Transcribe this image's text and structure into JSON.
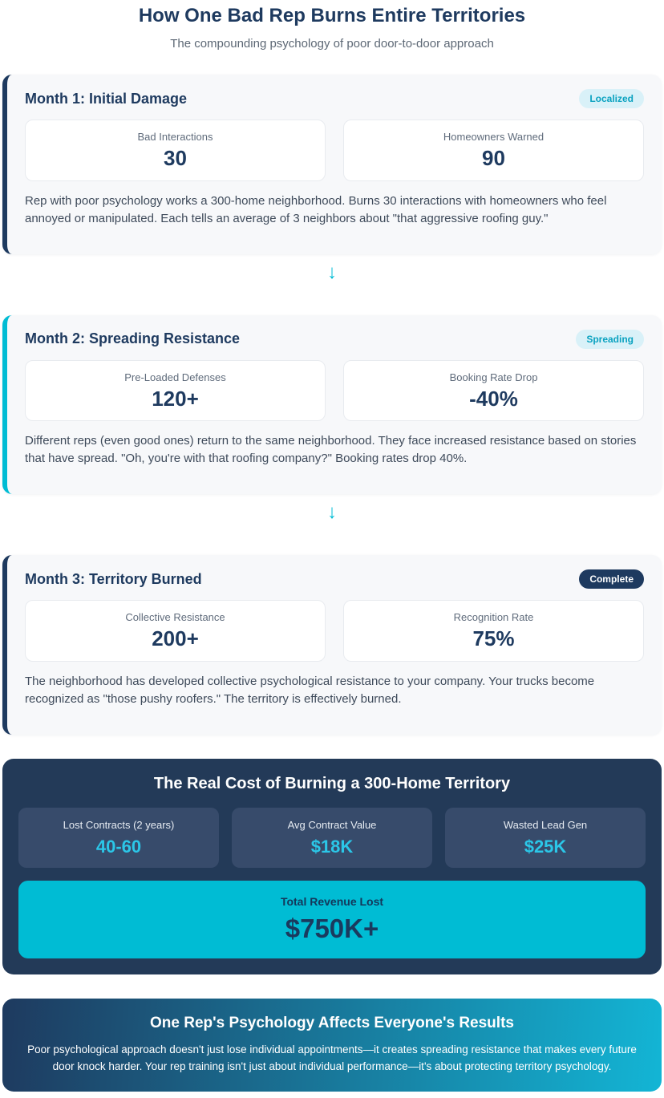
{
  "header": {
    "title": "How One Bad Rep Burns Entire Territories",
    "subtitle": "The compounding psychology of poor door-to-door approach"
  },
  "months": [
    {
      "heading": "Month 1: Initial Damage",
      "badge": "Localized",
      "stats": [
        {
          "label": "Bad Interactions",
          "value": "30"
        },
        {
          "label": "Homeowners Warned",
          "value": "90"
        }
      ],
      "description": "Rep with poor psychology works a 300-home neighborhood. Burns 30 interactions with homeowners who feel annoyed or manipulated. Each tells an average of 3 neighbors about \"that aggressive roofing guy.\""
    },
    {
      "heading": "Month 2: Spreading Resistance",
      "badge": "Spreading",
      "stats": [
        {
          "label": "Pre-Loaded Defenses",
          "value": "120+"
        },
        {
          "label": "Booking Rate Drop",
          "value": "-40%"
        }
      ],
      "description": "Different reps (even good ones) return to the same neighborhood. They face increased resistance based on stories that have spread. \"Oh, you're with that roofing company?\" Booking rates drop 40%."
    },
    {
      "heading": "Month 3: Territory Burned",
      "badge": "Complete",
      "stats": [
        {
          "label": "Collective Resistance",
          "value": "200+"
        },
        {
          "label": "Recognition Rate",
          "value": "75%"
        }
      ],
      "description": "The neighborhood has developed collective psychological resistance to your company. Your trucks become recognized as \"those pushy roofers.\" The territory is effectively burned."
    }
  ],
  "icons": {
    "down_arrow": "↓"
  },
  "cost_panel": {
    "title": "The Real Cost of Burning a 300-Home Territory",
    "stats": [
      {
        "label": "Lost Contracts (2 years)",
        "value": "40-60"
      },
      {
        "label": "Avg Contract Value",
        "value": "$18K"
      },
      {
        "label": "Wasted Lead Gen",
        "value": "$25K"
      }
    ],
    "total": {
      "label": "Total Revenue Lost",
      "value": "$750K+"
    }
  },
  "footer_panel": {
    "title": "One Rep's Psychology Affects Everyone's Results",
    "text": "Poor psychological approach doesn't just lose individual appointments—it creates spreading resistance that makes every future door knock harder. Your rep training isn't just about individual performance—it's about protecting territory psychology."
  },
  "colors": {
    "navy": "#1e3a5f",
    "cyan": "#00bcd4",
    "badge_light_bg": "#d9f1f8",
    "badge_light_text": "#0aa2c0",
    "cost_panel_bg": "#233a58",
    "cost_stat_box_bg": "#374b6b",
    "cost_value_cyan": "#2bc7e8",
    "card_bg": "#f7f8fa"
  }
}
